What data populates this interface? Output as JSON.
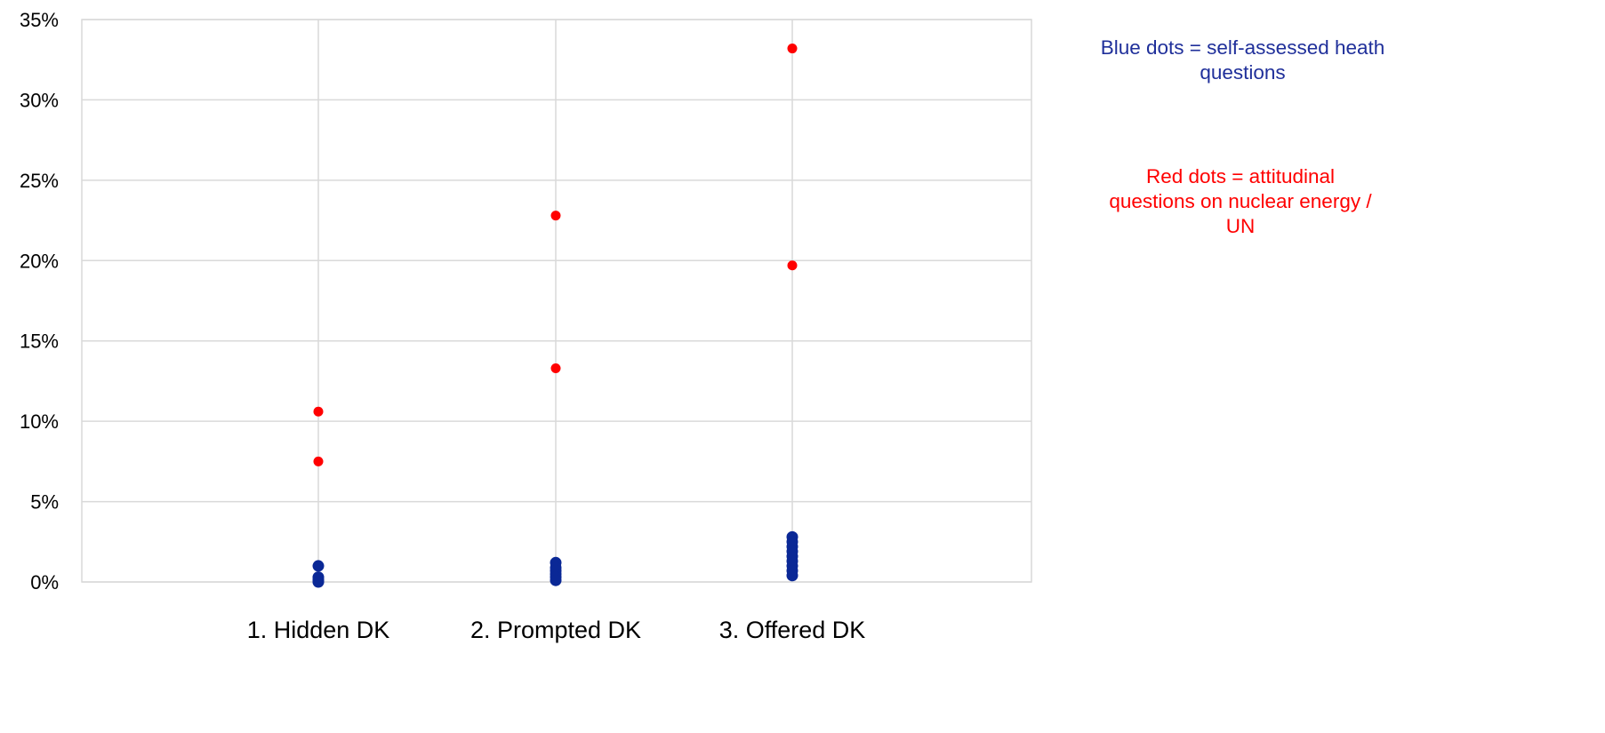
{
  "chart_data": {
    "type": "scatter",
    "title": "",
    "xlabel": "",
    "ylabel": "",
    "categories": [
      "1. Hidden DK",
      "2. Prompted DK",
      "3. Offered DK"
    ],
    "ylim": [
      0,
      35
    ],
    "yticks": [
      0,
      5,
      10,
      15,
      20,
      25,
      30,
      35
    ],
    "ytick_labels": [
      "0%",
      "5%",
      "10%",
      "15%",
      "20%",
      "25%",
      "30%",
      "35%"
    ],
    "grid": true,
    "series": [
      {
        "color": "#0a2896",
        "points": [
          {
            "x": "1. Hidden DK",
            "y": 1.0
          },
          {
            "x": "1. Hidden DK",
            "y": 0.3
          },
          {
            "x": "1. Hidden DK",
            "y": 0.15
          },
          {
            "x": "1. Hidden DK",
            "y": 0.05
          },
          {
            "x": "1. Hidden DK",
            "y": 0.0
          },
          {
            "x": "2. Prompted DK",
            "y": 1.2
          },
          {
            "x": "2. Prompted DK",
            "y": 0.9
          },
          {
            "x": "2. Prompted DK",
            "y": 0.7
          },
          {
            "x": "2. Prompted DK",
            "y": 0.5
          },
          {
            "x": "2. Prompted DK",
            "y": 0.3
          },
          {
            "x": "2. Prompted DK",
            "y": 0.1
          },
          {
            "x": "3. Offered DK",
            "y": 2.8
          },
          {
            "x": "3. Offered DK",
            "y": 2.5
          },
          {
            "x": "3. Offered DK",
            "y": 2.2
          },
          {
            "x": "3. Offered DK",
            "y": 1.9
          },
          {
            "x": "3. Offered DK",
            "y": 1.6
          },
          {
            "x": "3. Offered DK",
            "y": 1.3
          },
          {
            "x": "3. Offered DK",
            "y": 1.0
          },
          {
            "x": "3. Offered DK",
            "y": 0.7
          },
          {
            "x": "3. Offered DK",
            "y": 0.4
          }
        ]
      },
      {
        "color": "#ff0000",
        "points": [
          {
            "x": "1. Hidden DK",
            "y": 10.6
          },
          {
            "x": "1. Hidden DK",
            "y": 7.5
          },
          {
            "x": "2. Prompted DK",
            "y": 22.8
          },
          {
            "x": "2. Prompted DK",
            "y": 13.3
          },
          {
            "x": "3. Offered DK",
            "y": 33.2
          },
          {
            "x": "3. Offered DK",
            "y": 19.7
          }
        ]
      }
    ],
    "annotations": [
      {
        "text": "Blue dots = self-assessed heath questions",
        "color": "#1f2f9a"
      },
      {
        "text": "Red dots = attitudinal questions on nuclear energy / UN",
        "color": "#ff0000"
      }
    ]
  },
  "notes": {
    "blue": "Blue dots = self-assessed heath questions",
    "red": "Red dots = attitudinal questions on nuclear energy / UN"
  }
}
